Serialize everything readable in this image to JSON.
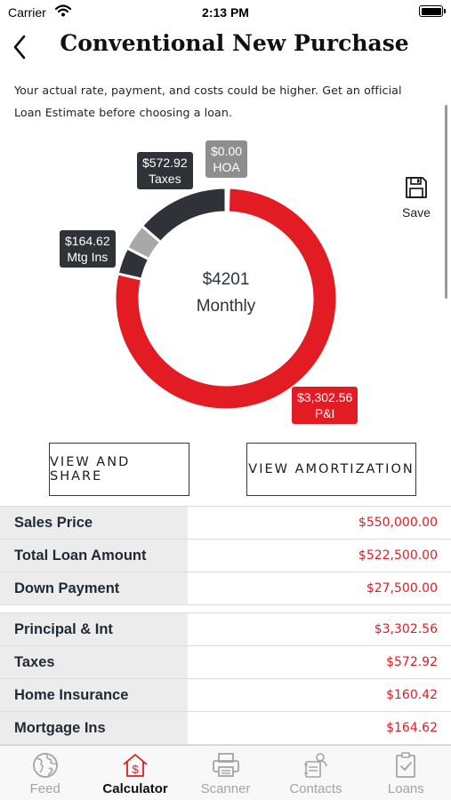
{
  "status_bar": {
    "carrier": "Carrier",
    "time": "2:13 PM"
  },
  "header": {
    "title": "Conventional New Purchase"
  },
  "disclaimer": "Your actual rate, payment, and costs could be higher. Get an official Loan Estimate before choosing a loan.",
  "chart_data": {
    "type": "pie",
    "style": "donut",
    "center_value": "$4201",
    "center_label": "Monthly",
    "slices": [
      {
        "label": "P&I",
        "value_text": "$3,302.56",
        "value": 3302.56,
        "color": "#e31b23"
      },
      {
        "label": "Mtg Ins",
        "value_text": "$164.62",
        "value": 164.62,
        "color": "#2f3236"
      },
      {
        "label": "",
        "value_text": "",
        "value": 160.42,
        "color": "#a8a8a8"
      },
      {
        "label": "Taxes",
        "value_text": "$572.92",
        "value": 572.92,
        "color": "#2f3236"
      },
      {
        "label": "HOA",
        "value_text": "$0.00",
        "value": 0,
        "color": "#8e8e8e"
      }
    ]
  },
  "save_label": "Save",
  "buttons": {
    "share": "VIEW AND SHARE",
    "amortization": "VIEW AMORTIZATION"
  },
  "summary_rows": [
    {
      "label": "Sales Price",
      "value": "$550,000.00"
    },
    {
      "label": "Total Loan Amount",
      "value": "$522,500.00"
    },
    {
      "label": "Down Payment",
      "value": "$27,500.00"
    }
  ],
  "payment_rows": [
    {
      "label": "Principal & Int",
      "value": "$3,302.56"
    },
    {
      "label": "Taxes",
      "value": "$572.92"
    },
    {
      "label": "Home Insurance",
      "value": "$160.42"
    },
    {
      "label": "Mortgage Ins",
      "value": "$164.62"
    }
  ],
  "tabs": [
    {
      "label": "Feed",
      "icon": "globe-icon"
    },
    {
      "label": "Calculator",
      "icon": "house-dollar-icon"
    },
    {
      "label": "Scanner",
      "icon": "printer-icon"
    },
    {
      "label": "Contacts",
      "icon": "contact-card-icon"
    },
    {
      "label": "Loans",
      "icon": "checklist-icon"
    }
  ],
  "active_tab": "Calculator",
  "colors": {
    "accent": "#e31b23",
    "dark": "#2f3236",
    "label_bg": "#ececec"
  }
}
